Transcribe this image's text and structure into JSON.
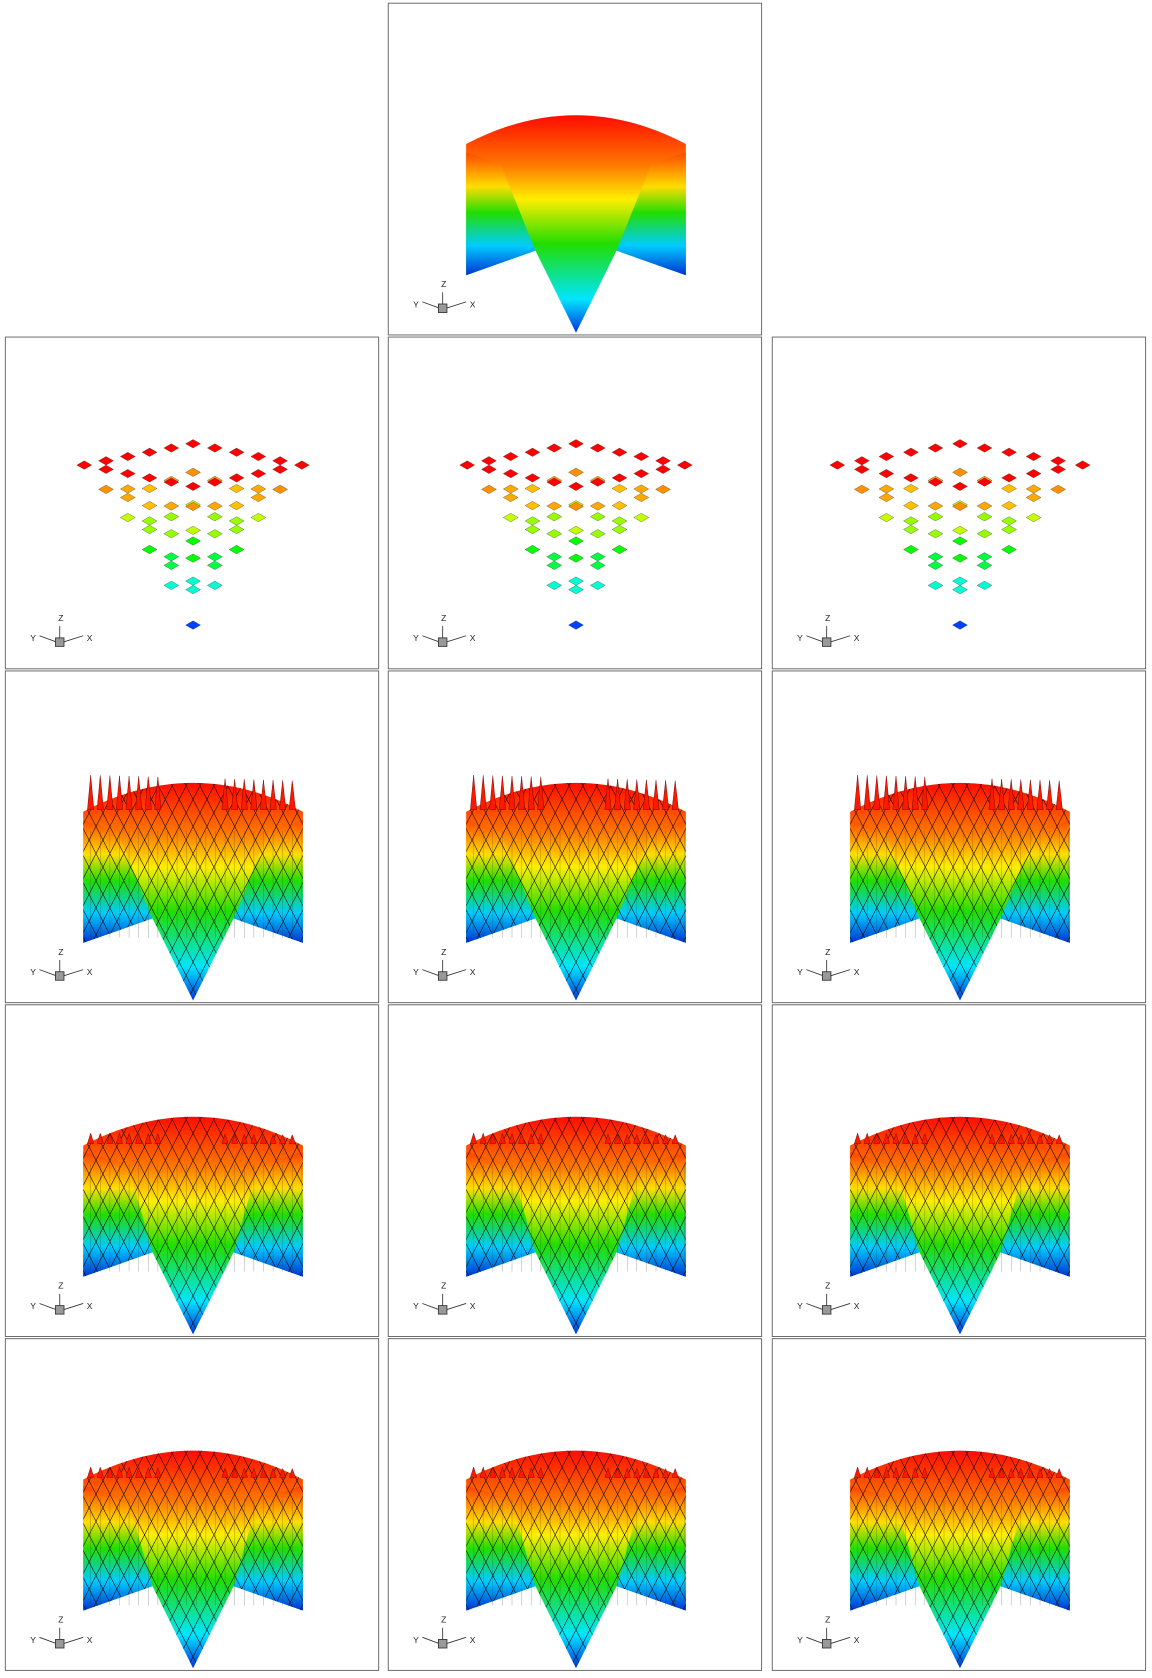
{
  "panels": [
    {
      "axes": {
        "x": "X",
        "y": "Y",
        "z": "Z"
      }
    },
    {
      "axes": {
        "x": "X",
        "y": "Y",
        "z": "Z"
      }
    },
    {
      "axes": {
        "x": "X",
        "y": "Y",
        "z": "Z"
      }
    },
    {
      "axes": {
        "x": "X",
        "y": "Y",
        "z": "Z"
      }
    },
    {
      "axes": {
        "x": "X",
        "y": "Y",
        "z": "Z"
      }
    },
    {
      "axes": {
        "x": "X",
        "y": "Y",
        "z": "Z"
      }
    },
    {
      "axes": {
        "x": "X",
        "y": "Y",
        "z": "Z"
      }
    },
    {
      "axes": {
        "x": "X",
        "y": "Y",
        "z": "Z"
      }
    },
    {
      "axes": {
        "x": "X",
        "y": "Y",
        "z": "Z"
      }
    },
    {
      "axes": {
        "x": "X",
        "y": "Y",
        "z": "Z"
      }
    },
    {
      "axes": {
        "x": "X",
        "y": "Y",
        "z": "Z"
      }
    },
    {
      "axes": {
        "x": "X",
        "y": "Y",
        "z": "Z"
      }
    },
    {
      "axes": {
        "x": "X",
        "y": "Y",
        "z": "Z"
      }
    }
  ]
}
